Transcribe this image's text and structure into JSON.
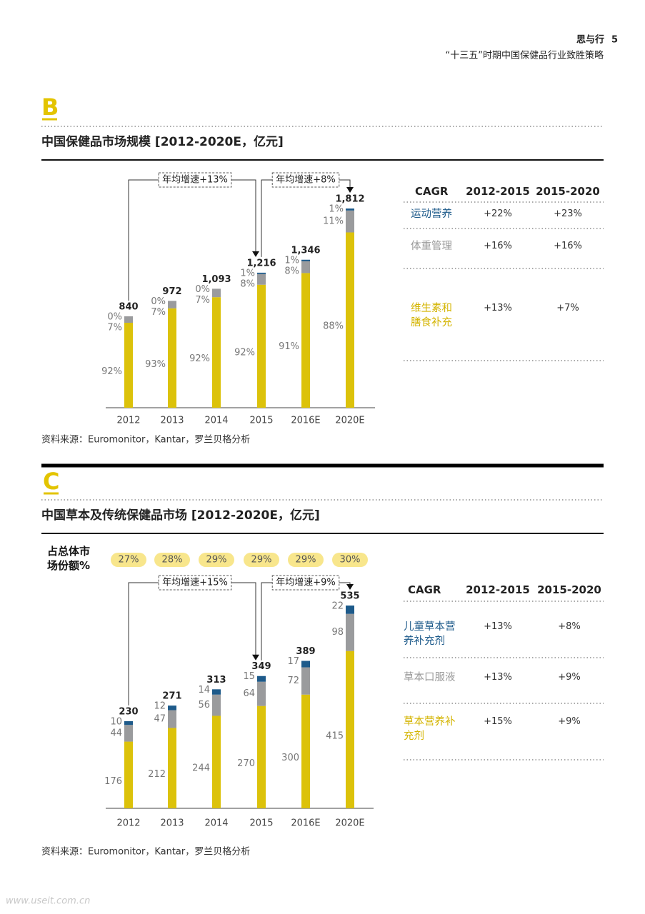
{
  "header": {
    "brand": "思与行",
    "page": "5",
    "subtitle": "“十三五”时期中国保健品行业致胜策略"
  },
  "watermark": "www.useit.com.cn",
  "sections": [
    {
      "letter": "B",
      "title": "中国保健品市场规模 [2012-2020E，亿元]",
      "source": "资料来源：Euromonitor，Kantar，罗兰贝格分析",
      "table": {
        "header": [
          "CAGR",
          "2012-2015",
          "2015-2020"
        ],
        "rows": [
          {
            "name": "运动营养",
            "color": "#1d5a8a",
            "cells": [
              "+22%",
              "+23%"
            ]
          },
          {
            "name": "体重管理",
            "color": "#999999",
            "cells": [
              "+16%",
              "+16%"
            ]
          },
          {
            "name": "维生素和膳食补充",
            "color": "#d4b400",
            "cells": [
              "+13%",
              "+7%"
            ]
          }
        ]
      }
    },
    {
      "letter": "C",
      "title": "中国草本及传统保健品市场 [2012-2020E，亿元]",
      "source": "资料来源：Euromonitor，Kantar，罗兰贝格分析",
      "table": {
        "header": [
          "CAGR",
          "2012-2015",
          "2015-2020"
        ],
        "rows": [
          {
            "name": "儿童草本营养补充剂",
            "color": "#1d5a8a",
            "cells": [
              "+13%",
              "+8%"
            ]
          },
          {
            "name": "草本口服液",
            "color": "#999999",
            "cells": [
              "+13%",
              "+9%"
            ]
          },
          {
            "name": "草本营养补充剂",
            "color": "#d4b400",
            "cells": [
              "+15%",
              "+9%"
            ]
          }
        ]
      }
    }
  ],
  "chart_data": [
    {
      "type": "bar",
      "stacked": "percent",
      "categories": [
        "2012",
        "2013",
        "2014",
        "2015",
        "2016E",
        "2020E"
      ],
      "series": [
        {
          "color": "#dcc20a",
          "values": [
            92,
            93,
            92,
            92,
            91,
            88
          ],
          "value_labels": [
            "92%",
            "93%",
            "92%",
            "92%",
            "91%",
            "88%"
          ]
        },
        {
          "color": "#9a9b9d",
          "values": [
            7,
            7,
            7,
            8,
            8,
            11
          ],
          "value_labels": [
            "7%",
            "7%",
            "7%",
            "8%",
            "8%",
            "11%"
          ]
        },
        {
          "color": "#1d5a8a",
          "values": [
            0,
            0,
            0,
            1,
            1,
            1
          ],
          "value_labels": [
            "0%",
            "0%",
            "0%",
            "1%",
            "1%",
            "1%"
          ]
        }
      ],
      "totals": {
        "values": [
          840,
          972,
          1093,
          1216,
          1346,
          1812
        ],
        "value_labels": [
          "840",
          "972",
          "1,093",
          "1,216",
          "1,346",
          "1,812"
        ]
      },
      "annotations": [
        "年均增速+13%",
        "年均增速+8%"
      ]
    },
    {
      "type": "bar",
      "stacked": "absolute",
      "categories": [
        "2012",
        "2013",
        "2014",
        "2015",
        "2016E",
        "2020E"
      ],
      "series": [
        {
          "color": "#dcc20a",
          "values": [
            176,
            212,
            244,
            270,
            300,
            415
          ]
        },
        {
          "color": "#9a9b9d",
          "values": [
            44,
            47,
            56,
            64,
            72,
            98
          ]
        },
        {
          "color": "#1d5a8a",
          "values": [
            10,
            12,
            14,
            15,
            17,
            22
          ]
        }
      ],
      "totals": {
        "values": [
          230,
          271,
          313,
          349,
          389,
          535
        ]
      },
      "share": {
        "label": "占总体市场份额%",
        "values": [
          27,
          28,
          29,
          29,
          29,
          30
        ],
        "value_labels": [
          "27%",
          "28%",
          "29%",
          "29%",
          "29%",
          "30%"
        ]
      },
      "annotations": [
        "年均增速+15%",
        "年均增速+9%"
      ]
    }
  ]
}
